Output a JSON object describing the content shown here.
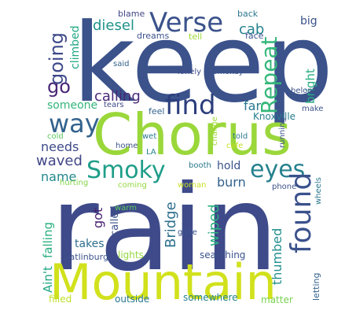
{
  "words": [
    {
      "text": "keep",
      "color": "#3b528b"
    },
    {
      "text": "Chorus",
      "color": "#9ad73a"
    },
    {
      "text": "rain",
      "color": "#3e4a89"
    },
    {
      "text": "Mountain",
      "color": "#d1e11c"
    },
    {
      "text": "find",
      "color": "#2c3e7c"
    },
    {
      "text": "Verse",
      "color": "#3b528b"
    },
    {
      "text": "Repeat",
      "color": "#35b779"
    },
    {
      "text": "way",
      "color": "#33628d"
    },
    {
      "text": "go",
      "color": "#482677"
    },
    {
      "text": "Smoky",
      "color": "#1f9e89"
    },
    {
      "text": "eyes",
      "color": "#26828e"
    },
    {
      "text": "found",
      "color": "#3b528b"
    },
    {
      "text": "going",
      "color": "#3e4a89"
    },
    {
      "text": "calling",
      "color": "#482878"
    },
    {
      "text": "diesel",
      "color": "#20938c"
    },
    {
      "text": "cab",
      "color": "#26828e"
    },
    {
      "text": "big",
      "color": "#3b528b"
    },
    {
      "text": "bright",
      "color": "#27ad81"
    },
    {
      "text": "climbed",
      "color": "#22a884"
    },
    {
      "text": "someone",
      "color": "#31b57b"
    },
    {
      "text": "far",
      "color": "#2a788e"
    },
    {
      "text": "Knoxville",
      "color": "#287d8e"
    },
    {
      "text": "needs",
      "color": "#3e4a89"
    },
    {
      "text": "waved",
      "color": "#404688"
    },
    {
      "text": "name",
      "color": "#23888e"
    },
    {
      "text": "Bridge",
      "color": "#2d708e"
    },
    {
      "text": "hold",
      "color": "#3b528b"
    },
    {
      "text": "burn",
      "color": "#33638d"
    },
    {
      "text": "wiped",
      "color": "#29af7f"
    },
    {
      "text": "thumbed",
      "color": "#21908d"
    },
    {
      "text": "got",
      "color": "#482173"
    },
    {
      "text": "called",
      "color": "#3b528b"
    },
    {
      "text": "Ain't",
      "color": "#21a685"
    },
    {
      "text": "falling",
      "color": "#29af7f"
    },
    {
      "text": "takes",
      "color": "#2e6e8e"
    },
    {
      "text": "Gatlinburg",
      "color": "#3b528b"
    },
    {
      "text": "lights",
      "color": "#95d840"
    },
    {
      "text": "searching",
      "color": "#3b528b"
    },
    {
      "text": "outside",
      "color": "#2a788e"
    },
    {
      "text": "somewhere",
      "color": "#25838e"
    },
    {
      "text": "filled",
      "color": "#bddf26"
    },
    {
      "text": "matter",
      "color": "#7ad151"
    },
    {
      "text": "letting",
      "color": "#33638d"
    },
    {
      "text": "blame",
      "color": "#404688"
    },
    {
      "text": "back",
      "color": "#2a788e"
    },
    {
      "text": "dreams",
      "color": "#3b528b"
    },
    {
      "text": "tell",
      "color": "#a0da39"
    },
    {
      "text": "face",
      "color": "#3b528b"
    },
    {
      "text": "said",
      "color": "#33638d"
    },
    {
      "text": "lonely",
      "color": "#3e4a89"
    },
    {
      "text": "Smokey",
      "color": "#3b528b"
    },
    {
      "text": "belong",
      "color": "#3b528b"
    },
    {
      "text": "make",
      "color": "#3b528b"
    },
    {
      "text": "tears",
      "color": "#3e4a89"
    },
    {
      "text": "feel",
      "color": "#33638d"
    },
    {
      "text": "change",
      "color": "#a0da39"
    },
    {
      "text": "told",
      "color": "#2a788e"
    },
    {
      "text": "cafe",
      "color": "#c2df23"
    },
    {
      "text": "running",
      "color": "#3b528b"
    },
    {
      "text": "cold",
      "color": "#5ec962"
    },
    {
      "text": "wet",
      "color": "#2a788e"
    },
    {
      "text": "home",
      "color": "#3b528b"
    },
    {
      "text": "LA",
      "color": "#25838e"
    },
    {
      "text": "booth",
      "color": "#2a788e"
    },
    {
      "text": "hurting",
      "color": "#84d44b"
    },
    {
      "text": "coming",
      "color": "#95d840"
    },
    {
      "text": "woman",
      "color": "#c8e020"
    },
    {
      "text": "phone",
      "color": "#3b528b"
    },
    {
      "text": "wheels",
      "color": "#2a788e"
    },
    {
      "text": "warm",
      "color": "#5ec962"
    },
    {
      "text": "gone",
      "color": "#3b528b"
    }
  ]
}
